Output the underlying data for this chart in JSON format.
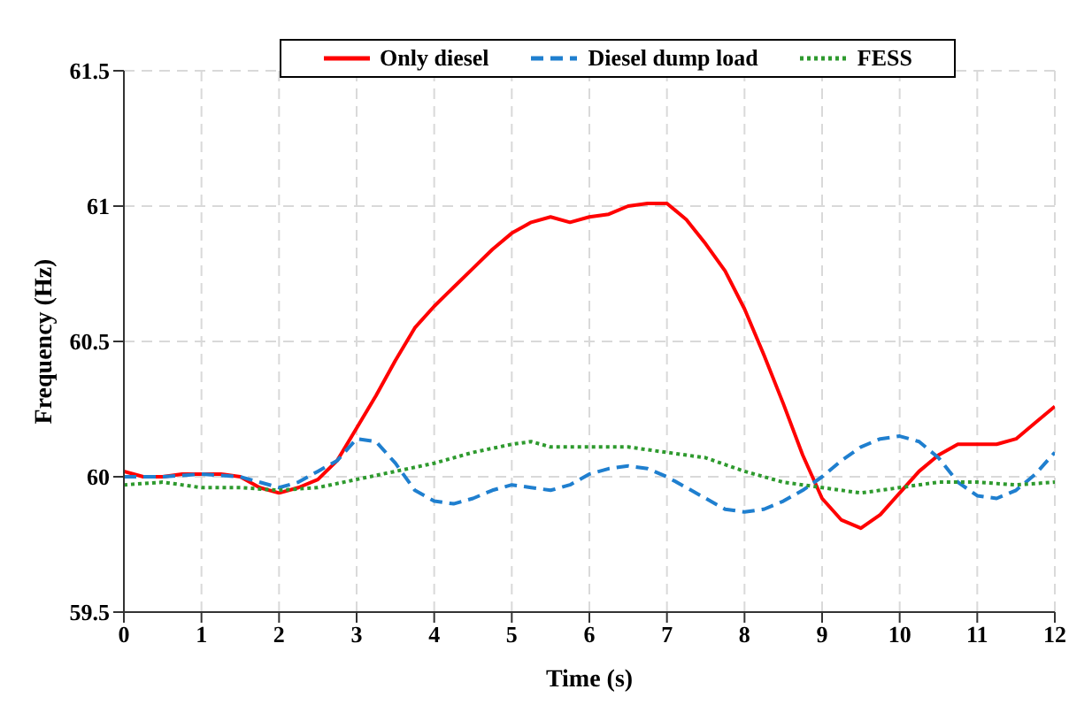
{
  "chart_data": {
    "type": "line",
    "xlabel": "Time (s)",
    "ylabel": "Frequency (Hz)",
    "xlim": [
      0,
      12
    ],
    "xticks": [
      0,
      1,
      2,
      3,
      4,
      5,
      6,
      7,
      8,
      9,
      10,
      11,
      12
    ],
    "ylim": [
      59.5,
      61.5
    ],
    "yticks": [
      59.5,
      60,
      60.5,
      61,
      61.5
    ],
    "grid": true,
    "legend": "top",
    "marker": "none",
    "series": [
      {
        "name": "Only diesel",
        "color": "#ff0000",
        "line_style": "solid",
        "x": [
          0,
          0.25,
          0.5,
          0.75,
          1,
          1.25,
          1.5,
          1.75,
          2,
          2.25,
          2.5,
          2.75,
          3,
          3.25,
          3.5,
          3.75,
          4,
          4.25,
          4.5,
          4.75,
          5,
          5.25,
          5.5,
          5.75,
          6,
          6.25,
          6.5,
          6.75,
          7,
          7.25,
          7.5,
          7.75,
          8,
          8.25,
          8.5,
          8.75,
          9,
          9.25,
          9.5,
          9.75,
          10,
          10.25,
          10.5,
          10.75,
          11,
          11.25,
          11.5,
          11.75,
          12
        ],
        "values": [
          60.02,
          60,
          60,
          60.01,
          60.01,
          60.01,
          60,
          59.96,
          59.94,
          59.96,
          59.99,
          60.06,
          60.18,
          60.3,
          60.43,
          60.55,
          60.63,
          60.7,
          60.77,
          60.84,
          60.9,
          60.94,
          60.96,
          60.94,
          60.96,
          60.97,
          61,
          61.01,
          61.01,
          60.95,
          60.86,
          60.76,
          60.62,
          60.45,
          60.27,
          60.08,
          59.92,
          59.84,
          59.81,
          59.86,
          59.94,
          60.02,
          60.08,
          60.12,
          60.12,
          60.12,
          60.14,
          60.2,
          60.26
        ]
      },
      {
        "name": "Diesel dump load",
        "color": "#1f7fcf",
        "line_style": "dashed",
        "x": [
          0,
          0.5,
          1,
          1.5,
          2,
          2.25,
          2.5,
          2.75,
          3,
          3.25,
          3.5,
          3.75,
          4,
          4.25,
          4.5,
          4.75,
          5,
          5.25,
          5.5,
          5.75,
          6,
          6.25,
          6.5,
          6.75,
          7,
          7.25,
          7.5,
          7.75,
          8,
          8.25,
          8.5,
          8.75,
          9,
          9.25,
          9.5,
          9.75,
          10,
          10.25,
          10.5,
          10.75,
          11,
          11.25,
          11.5,
          11.75,
          12
        ],
        "values": [
          60,
          60,
          60.01,
          60,
          59.96,
          59.98,
          60.02,
          60.06,
          60.14,
          60.13,
          60.05,
          59.95,
          59.91,
          59.9,
          59.92,
          59.95,
          59.97,
          59.96,
          59.95,
          59.97,
          60.01,
          60.03,
          60.04,
          60.03,
          60,
          59.96,
          59.92,
          59.88,
          59.87,
          59.88,
          59.91,
          59.95,
          60,
          60.06,
          60.11,
          60.14,
          60.15,
          60.13,
          60.07,
          59.98,
          59.93,
          59.92,
          59.95,
          60.01,
          60.09
        ]
      },
      {
        "name": "FESS",
        "color": "#2e9a2e",
        "line_style": "dotted",
        "x": [
          0,
          0.5,
          1,
          1.5,
          2,
          2.5,
          3,
          3.5,
          4,
          4.5,
          5,
          5.25,
          5.5,
          6,
          6.5,
          7,
          7.5,
          8,
          8.5,
          9,
          9.5,
          10,
          10.5,
          11,
          11.5,
          12
        ],
        "values": [
          59.97,
          59.98,
          59.96,
          59.96,
          59.95,
          59.96,
          59.99,
          60.02,
          60.05,
          60.09,
          60.12,
          60.13,
          60.11,
          60.11,
          60.11,
          60.09,
          60.07,
          60.02,
          59.98,
          59.96,
          59.94,
          59.96,
          59.98,
          59.98,
          59.97,
          59.98
        ]
      }
    ]
  }
}
